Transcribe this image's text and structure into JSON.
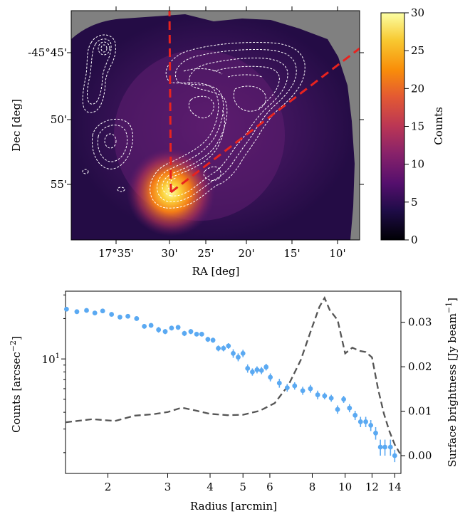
{
  "chart_data": [
    {
      "type": "heatmap",
      "xlabel": "RA [deg]",
      "ylabel": "Dec [deg]",
      "x_ticks": [
        "17°35'",
        "30'",
        "25'",
        "20'",
        "15'",
        "10'"
      ],
      "y_ticks": [
        "-45°45'",
        "50'",
        "55'"
      ],
      "colorbar": {
        "label": "Counts",
        "range": [
          0,
          30
        ],
        "ticks": [
          "0",
          "5",
          "10",
          "15",
          "20",
          "25",
          "30"
        ],
        "colormap": "inferno"
      },
      "overlay": "white dashed contours",
      "lines_color": "#e8231f"
    },
    {
      "type": "scatter",
      "xlabel": "Radius [arcmin]",
      "ylabel": "Counts [arcsec$^{-2}$]",
      "y2label": "Surface brightness [Jy beam$^{-1}$]",
      "x_scale": "log",
      "y_scale": "log",
      "xlim": [
        1.5,
        14.6
      ],
      "ylim": [
        1.4,
        32
      ],
      "y2lim": [
        -0.004,
        0.037
      ],
      "x_ticks": [
        "2",
        "3",
        "4",
        "5",
        "6",
        "8",
        "10",
        "12",
        "14"
      ],
      "y_ticks": [
        "10$^{1}$"
      ],
      "y2_ticks": [
        "0.00",
        "0.01",
        "0.02",
        "0.03"
      ],
      "series": [
        {
          "style": "points with error bars",
          "color": "#5aa9f2",
          "x": [
            1.51,
            1.62,
            1.73,
            1.83,
            1.93,
            2.05,
            2.17,
            2.29,
            2.43,
            2.56,
            2.68,
            2.82,
            2.95,
            3.08,
            3.22,
            3.36,
            3.51,
            3.65,
            3.78,
            3.94,
            4.08,
            4.23,
            4.38,
            4.53,
            4.68,
            4.84,
            5.0,
            5.16,
            5.33,
            5.5,
            5.67,
            5.85,
            6.02,
            6.4,
            6.75,
            7.1,
            7.5,
            7.9,
            8.3,
            8.7,
            9.1,
            9.5,
            9.9,
            10.3,
            10.7,
            11.1,
            11.5,
            11.9,
            12.3,
            12.7,
            13.1,
            13.6,
            14.0
          ],
          "y": [
            23.5,
            22.5,
            23,
            22,
            22.8,
            21.5,
            20.5,
            20.8,
            20,
            17.5,
            17.8,
            16.5,
            16,
            17,
            17.2,
            15.5,
            16,
            15.3,
            15.3,
            14,
            13.8,
            12,
            12,
            12.5,
            11,
            10.3,
            11,
            8.5,
            8,
            8.3,
            8.2,
            8.7,
            7.3,
            6.6,
            6.1,
            6.3,
            5.8,
            6,
            5.4,
            5.3,
            5.1,
            4.2,
            5.0,
            4.3,
            3.8,
            3.4,
            3.4,
            3.2,
            2.8,
            2.2,
            2.2,
            2.2,
            1.9
          ],
          "yerr": [
            0.9,
            0.8,
            0.8,
            0.8,
            0.8,
            0.8,
            0.7,
            0.7,
            0.7,
            0.7,
            0.7,
            0.8,
            0.7,
            0.7,
            0.7,
            0.7,
            0.7,
            0.6,
            0.6,
            0.6,
            0.6,
            0.6,
            0.6,
            0.6,
            0.8,
            0.7,
            0.7,
            0.6,
            0.5,
            0.5,
            0.5,
            0.5,
            0.5,
            0.5,
            0.4,
            0.4,
            0.4,
            0.4,
            0.4,
            0.3,
            0.3,
            0.3,
            0.3,
            0.3,
            0.3,
            0.3,
            0.3,
            0.3,
            0.3,
            0.3,
            0.3,
            0.3,
            0.2
          ]
        },
        {
          "style": "dashed line (right axis)",
          "color": "#555555",
          "x": [
            1.5,
            1.8,
            2.1,
            2.4,
            2.7,
            3.0,
            3.3,
            3.6,
            4.0,
            4.5,
            5.0,
            5.6,
            6.2,
            6.8,
            7.4,
            8.0,
            8.4,
            8.7,
            9.0,
            9.5,
            10.0,
            10.5,
            11.0,
            11.5,
            12.0,
            12.5,
            13.0,
            13.5,
            14.0,
            14.5
          ],
          "y": [
            0.0075,
            0.0082,
            0.0078,
            0.009,
            0.0093,
            0.0098,
            0.0108,
            0.0102,
            0.0094,
            0.0091,
            0.0092,
            0.0101,
            0.0118,
            0.0158,
            0.0215,
            0.029,
            0.0335,
            0.0355,
            0.0328,
            0.0305,
            0.023,
            0.0243,
            0.0236,
            0.0233,
            0.0221,
            0.015,
            0.0095,
            0.0055,
            0.0025,
            0.0005
          ]
        }
      ]
    }
  ]
}
